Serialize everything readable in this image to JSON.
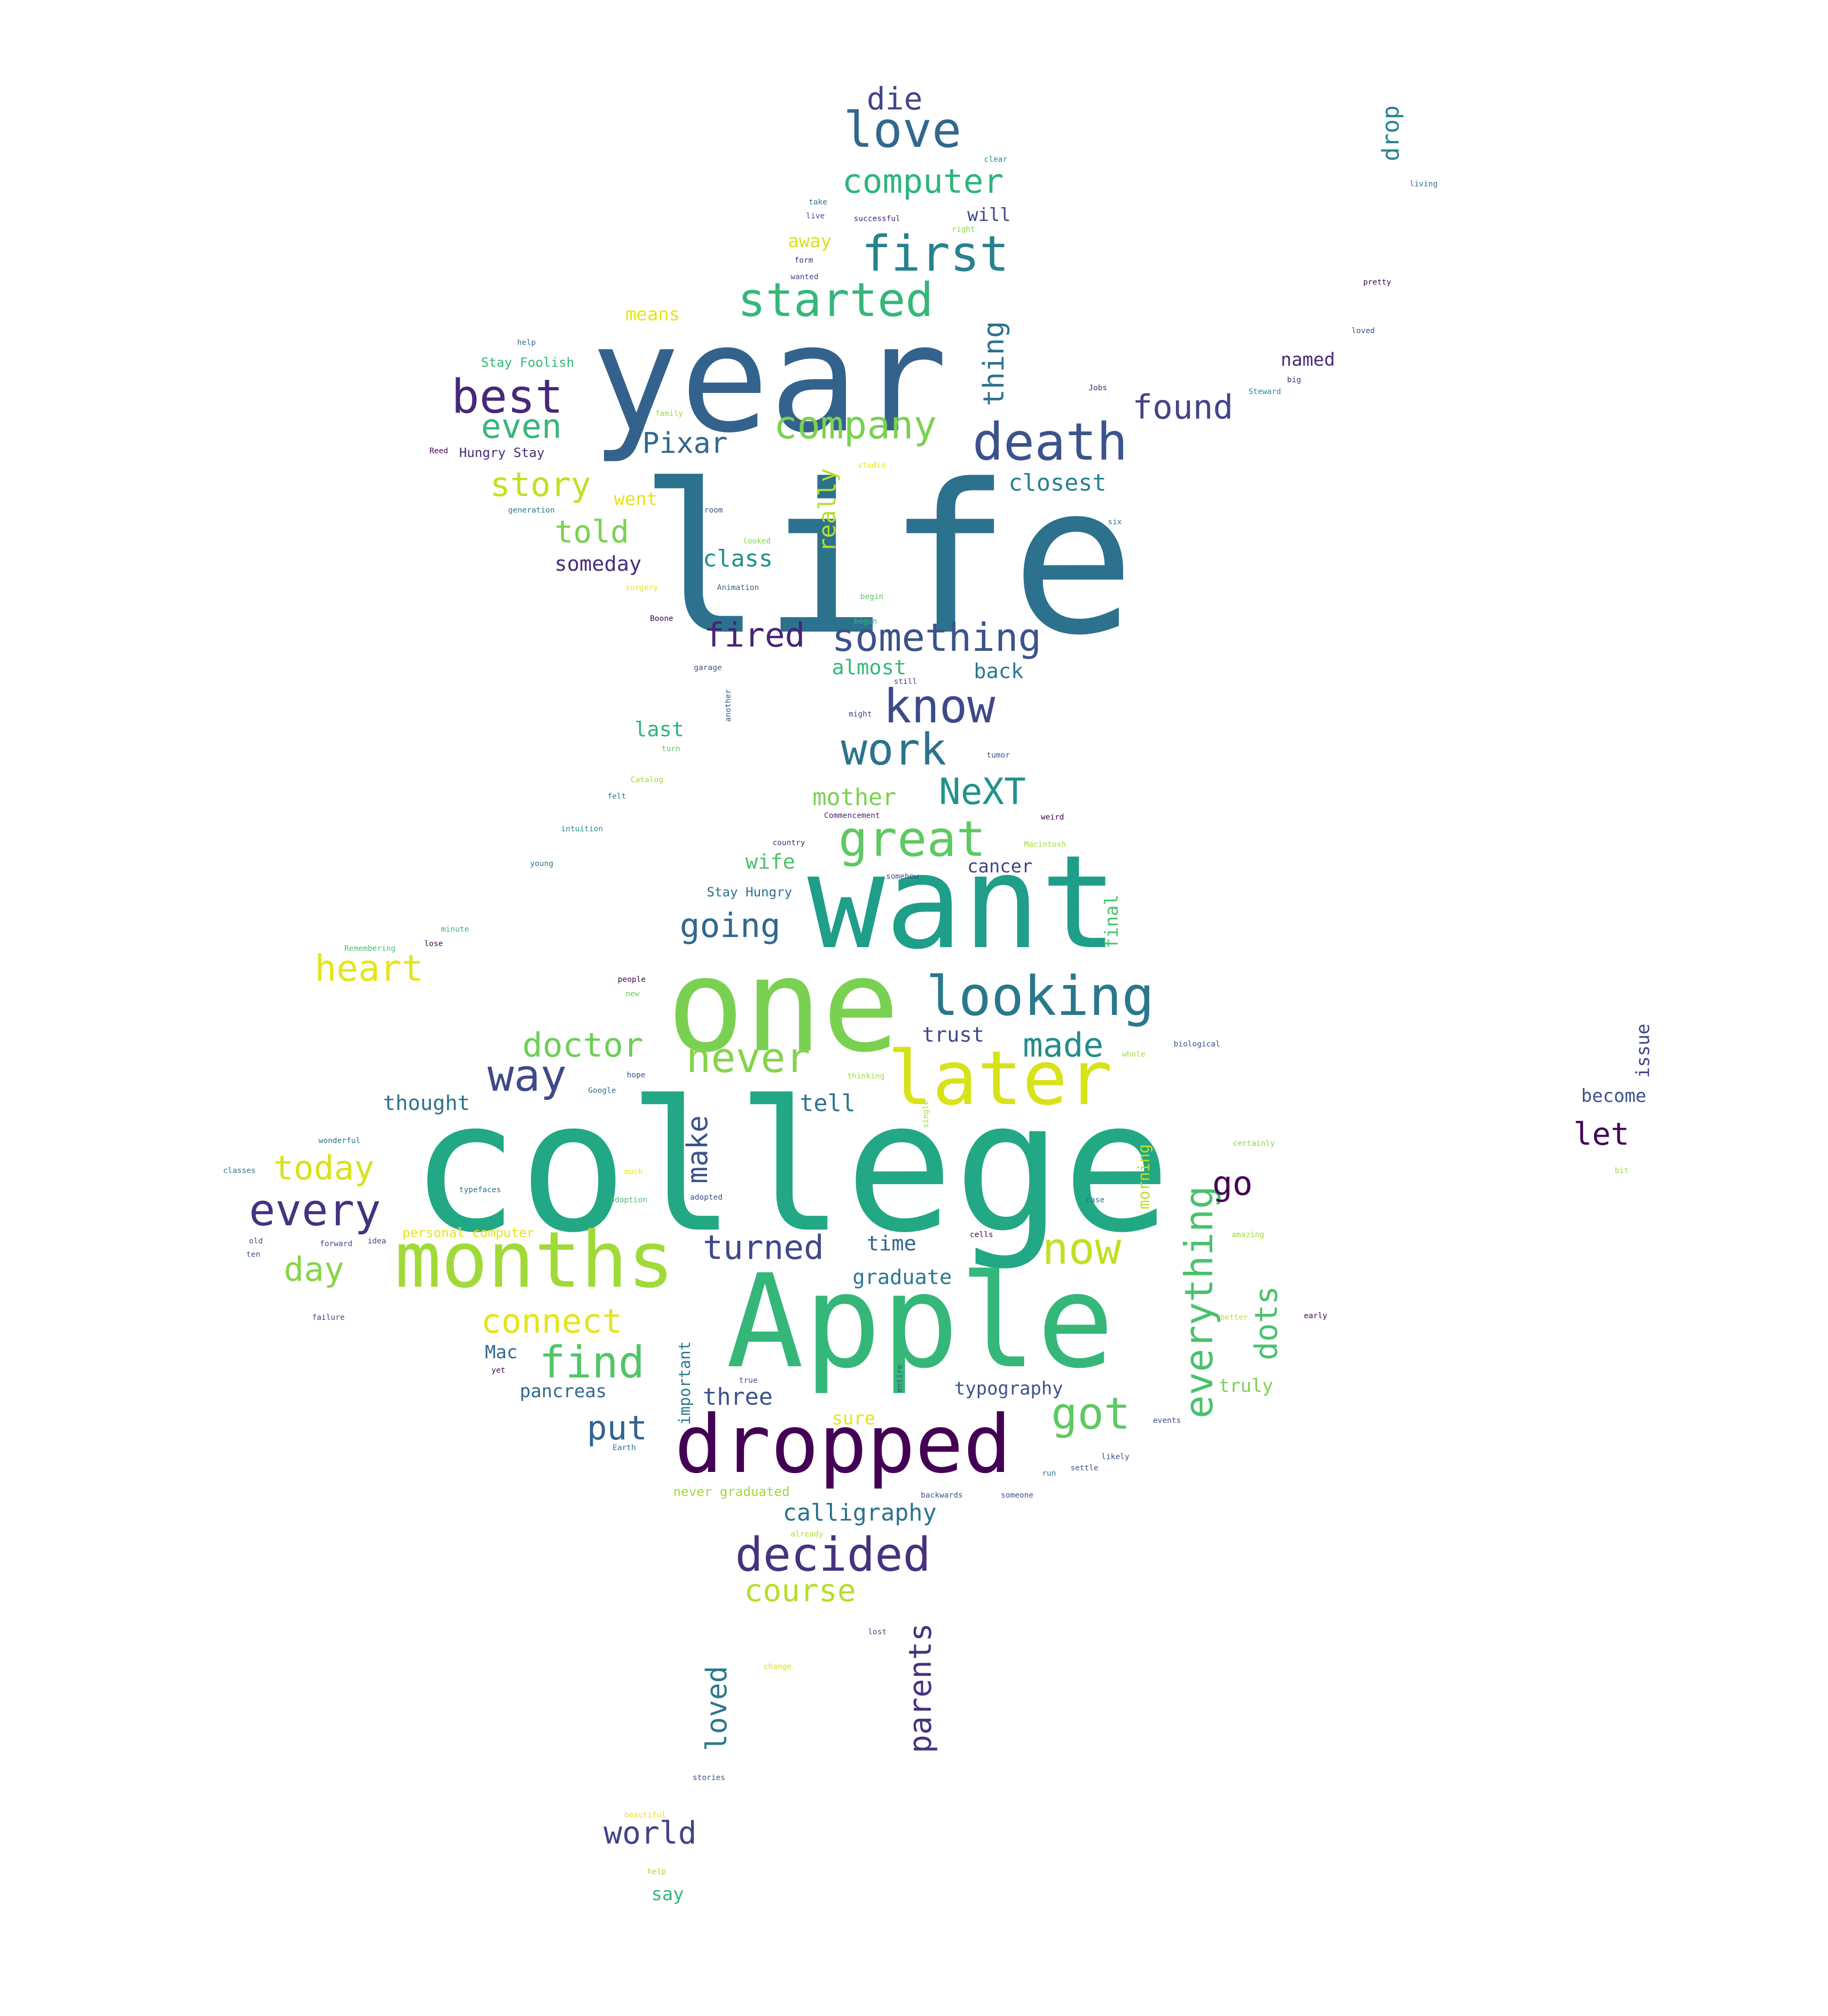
{
  "words": [
    {
      "text": "life",
      "color": "#2c728e"
    },
    {
      "text": "college",
      "color": "#22a884"
    },
    {
      "text": "year",
      "color": "#33638d"
    },
    {
      "text": "want",
      "color": "#1f9e89"
    },
    {
      "text": "one",
      "color": "#7ad151"
    },
    {
      "text": "Apple",
      "color": "#35b779"
    },
    {
      "text": "dropped",
      "color": "#440154"
    },
    {
      "text": "months",
      "color": "#a0da39"
    },
    {
      "text": "later",
      "color": "#d8e219"
    },
    {
      "text": "death",
      "color": "#3b528b"
    },
    {
      "text": "looking",
      "color": "#2a788e"
    },
    {
      "text": "love",
      "color": "#31688e"
    },
    {
      "text": "first",
      "color": "#26828e"
    },
    {
      "text": "started",
      "color": "#35b779"
    },
    {
      "text": "know",
      "color": "#3e4989"
    },
    {
      "text": "work",
      "color": "#2c728e"
    },
    {
      "text": "great",
      "color": "#5ec962"
    },
    {
      "text": "decided",
      "color": "#46327e"
    },
    {
      "text": "everything",
      "color": "#4ac16d"
    },
    {
      "text": "never",
      "color": "#84d44b"
    },
    {
      "text": "now",
      "color": "#c2df23"
    },
    {
      "text": "something",
      "color": "#3b528b"
    },
    {
      "text": "best",
      "color": "#482878"
    },
    {
      "text": "company",
      "color": "#7ad151"
    },
    {
      "text": "way",
      "color": "#3e4989"
    },
    {
      "text": "every",
      "color": "#46327e"
    },
    {
      "text": "computer",
      "color": "#2fb47c"
    },
    {
      "text": "heart",
      "color": "#e5e419"
    },
    {
      "text": "found",
      "color": "#414487"
    },
    {
      "text": "doctor",
      "color": "#6ece58"
    },
    {
      "text": "find",
      "color": "#52c569"
    },
    {
      "text": "got",
      "color": "#5ec962"
    },
    {
      "text": "story",
      "color": "#c2df23"
    },
    {
      "text": "today",
      "color": "#d8e219"
    },
    {
      "text": "day",
      "color": "#86d549"
    },
    {
      "text": "connect",
      "color": "#e5e419"
    },
    {
      "text": "turned",
      "color": "#3e4989"
    },
    {
      "text": "NeXT",
      "color": "#21918c"
    },
    {
      "text": "going",
      "color": "#31688e"
    },
    {
      "text": "made",
      "color": "#228c8d"
    },
    {
      "text": "even",
      "color": "#35b779"
    },
    {
      "text": "die",
      "color": "#414487"
    },
    {
      "text": "fired",
      "color": "#482475"
    },
    {
      "text": "told",
      "color": "#7ad151"
    },
    {
      "text": "thing",
      "color": "#2c728e"
    },
    {
      "text": "Pixar",
      "color": "#31688e"
    },
    {
      "text": "world",
      "color": "#414487"
    },
    {
      "text": "course",
      "color": "#b5de2b"
    },
    {
      "text": "calligraphy",
      "color": "#2c728e"
    },
    {
      "text": "parents",
      "color": "#46327e"
    },
    {
      "text": "loved",
      "color": "#2a788e"
    },
    {
      "text": "dots",
      "color": "#4ac16d"
    },
    {
      "text": "put",
      "color": "#33638d"
    },
    {
      "text": "make",
      "color": "#3b528b"
    },
    {
      "text": "go",
      "color": "#440154"
    },
    {
      "text": "let",
      "color": "#440154"
    },
    {
      "text": "closest",
      "color": "#26828e"
    },
    {
      "text": "mother",
      "color": "#7ad151"
    },
    {
      "text": "really",
      "color": "#b5de2b"
    },
    {
      "text": "tell",
      "color": "#2c728e"
    },
    {
      "text": "class",
      "color": "#21918c"
    },
    {
      "text": "someday",
      "color": "#472d7b"
    },
    {
      "text": "three",
      "color": "#3b528b"
    },
    {
      "text": "last",
      "color": "#2fb47c"
    },
    {
      "text": "almost",
      "color": "#37b878"
    },
    {
      "text": "back",
      "color": "#2a788e"
    },
    {
      "text": "drop",
      "color": "#26828e"
    },
    {
      "text": "named",
      "color": "#482878"
    },
    {
      "text": "trust",
      "color": "#3e4989"
    },
    {
      "text": "wife",
      "color": "#4ac16d"
    },
    {
      "text": "time",
      "color": "#33638d"
    },
    {
      "text": "graduate",
      "color": "#2a788e"
    },
    {
      "text": "thought",
      "color": "#2c728e"
    },
    {
      "text": "cancer",
      "color": "#414487"
    },
    {
      "text": "final",
      "color": "#4ac16d"
    },
    {
      "text": "morning",
      "color": "#c2df23"
    },
    {
      "text": "pancreas",
      "color": "#31688e"
    },
    {
      "text": "typography",
      "color": "#3b528b"
    },
    {
      "text": "truly",
      "color": "#7ad151"
    },
    {
      "text": "important",
      "color": "#2a788e"
    },
    {
      "text": "sure",
      "color": "#e5e419"
    },
    {
      "text": "Mac",
      "color": "#31688e"
    },
    {
      "text": "say",
      "color": "#35b779"
    },
    {
      "text": "will",
      "color": "#3e4989"
    },
    {
      "text": "means",
      "color": "#e5e419"
    },
    {
      "text": "away",
      "color": "#d8e219"
    },
    {
      "text": "went",
      "color": "#e5e419"
    },
    {
      "text": "issue",
      "color": "#414487"
    },
    {
      "text": "become",
      "color": "#3b528b"
    },
    {
      "text": "Stay Hungry",
      "color": "#2c728e"
    },
    {
      "text": "Stay Foolish",
      "color": "#35b779"
    },
    {
      "text": "Hungry Stay",
      "color": "#472d7b"
    },
    {
      "text": "never graduated",
      "color": "#a0da39"
    },
    {
      "text": "personal computer",
      "color": "#e5e419"
    },
    {
      "text": "clear",
      "color": "#228c8d"
    },
    {
      "text": "living",
      "color": "#2c728e"
    },
    {
      "text": "successful",
      "color": "#482878"
    },
    {
      "text": "right",
      "color": "#86d549"
    },
    {
      "text": "take",
      "color": "#2c728e"
    },
    {
      "text": "live",
      "color": "#3b528b"
    },
    {
      "text": "form",
      "color": "#46327e"
    },
    {
      "text": "wanted",
      "color": "#3e4989"
    },
    {
      "text": "pretty",
      "color": "#440154"
    },
    {
      "text": "loved",
      "color": "#3b528b"
    },
    {
      "text": "help",
      "color": "#2c728e"
    },
    {
      "text": "Jobs",
      "color": "#482878"
    },
    {
      "text": "big",
      "color": "#46327e"
    },
    {
      "text": "Steward",
      "color": "#21918c"
    },
    {
      "text": "family",
      "color": "#a0da39"
    },
    {
      "text": "Reed",
      "color": "#440154"
    },
    {
      "text": "generation",
      "color": "#2a788e"
    },
    {
      "text": "studio",
      "color": "#e5e419"
    },
    {
      "text": "room",
      "color": "#3b528b"
    },
    {
      "text": "six",
      "color": "#2a788e"
    },
    {
      "text": "looked",
      "color": "#86d549"
    },
    {
      "text": "surgery",
      "color": "#e5e419"
    },
    {
      "text": "Animation",
      "color": "#31688e"
    },
    {
      "text": "begin",
      "color": "#5ec962"
    },
    {
      "text": "begun",
      "color": "#35b779"
    },
    {
      "text": "Boone",
      "color": "#440154"
    },
    {
      "text": "garage",
      "color": "#3b528b"
    },
    {
      "text": "still",
      "color": "#3e4989"
    },
    {
      "text": "another",
      "color": "#3b528b"
    },
    {
      "text": "turn",
      "color": "#5ec962"
    },
    {
      "text": "might",
      "color": "#3e4989"
    },
    {
      "text": "tumor",
      "color": "#3b528b"
    },
    {
      "text": "Catalog",
      "color": "#a0da39"
    },
    {
      "text": "felt",
      "color": "#2a788e"
    },
    {
      "text": "Commencement",
      "color": "#482878"
    },
    {
      "text": "weird",
      "color": "#440154"
    },
    {
      "text": "intuition",
      "color": "#21918c"
    },
    {
      "text": "country",
      "color": "#472d7b"
    },
    {
      "text": "Macintosh",
      "color": "#a0da39"
    },
    {
      "text": "young",
      "color": "#2c728e"
    },
    {
      "text": "somehow",
      "color": "#3b528b"
    },
    {
      "text": "minute",
      "color": "#35b779"
    },
    {
      "text": "Remembering",
      "color": "#4ac16d"
    },
    {
      "text": "lose",
      "color": "#440154"
    },
    {
      "text": "people",
      "color": "#440154"
    },
    {
      "text": "new",
      "color": "#5ec962"
    },
    {
      "text": "whole",
      "color": "#a0da39"
    },
    {
      "text": "biological",
      "color": "#3b528b"
    },
    {
      "text": "hope",
      "color": "#3b528b"
    },
    {
      "text": "Google",
      "color": "#2c728e"
    },
    {
      "text": "thinking",
      "color": "#a0da39"
    },
    {
      "text": "wonderful",
      "color": "#2c728e"
    },
    {
      "text": "certainly",
      "color": "#86d549"
    },
    {
      "text": "single",
      "color": "#a0da39"
    },
    {
      "text": "classes",
      "color": "#2a788e"
    },
    {
      "text": "typefaces",
      "color": "#2c728e"
    },
    {
      "text": "much",
      "color": "#e5e419"
    },
    {
      "text": "adoption",
      "color": "#4ac16d"
    },
    {
      "text": "adopted",
      "color": "#3b528b"
    },
    {
      "text": "case",
      "color": "#2c728e"
    },
    {
      "text": "old",
      "color": "#3b528b"
    },
    {
      "text": "forward",
      "color": "#3e4989"
    },
    {
      "text": "idea",
      "color": "#3e4989"
    },
    {
      "text": "cells",
      "color": "#440154"
    },
    {
      "text": "amazing",
      "color": "#a0da39"
    },
    {
      "text": "ten",
      "color": "#3b528b"
    },
    {
      "text": "failure",
      "color": "#3e4989"
    },
    {
      "text": "better",
      "color": "#c2df23"
    },
    {
      "text": "yet",
      "color": "#440154"
    },
    {
      "text": "true",
      "color": "#3b528b"
    },
    {
      "text": "entire",
      "color": "#3b528b"
    },
    {
      "text": "events",
      "color": "#3e4989"
    },
    {
      "text": "Earth",
      "color": "#2c728e"
    },
    {
      "text": "likely",
      "color": "#3b528b"
    },
    {
      "text": "settle",
      "color": "#3b528b"
    },
    {
      "text": "backwards",
      "color": "#3b528b"
    },
    {
      "text": "someone",
      "color": "#3b528b"
    },
    {
      "text": "run",
      "color": "#2c728e"
    },
    {
      "text": "already",
      "color": "#b5de2b"
    },
    {
      "text": "bit",
      "color": "#a0da39"
    },
    {
      "text": "early",
      "color": "#440154"
    },
    {
      "text": "lost",
      "color": "#3e4989"
    },
    {
      "text": "change",
      "color": "#d8e219"
    },
    {
      "text": "stories",
      "color": "#3b528b"
    },
    {
      "text": "beautiful",
      "color": "#e5e419"
    },
    {
      "text": "help",
      "color": "#a0da39"
    }
  ]
}
